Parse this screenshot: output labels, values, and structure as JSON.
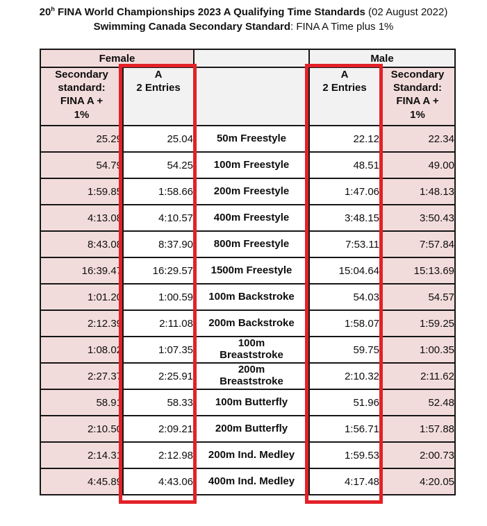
{
  "title": {
    "prefix": "20",
    "superscript": "h",
    "bold_main": " FINA World Championships 2023 A Qualifying Time Standards",
    "suffix": " (02 August 2022)"
  },
  "subtitle": {
    "bold": "Swimming Canada Secondary Standard",
    "regular": ": FINA A Time plus 1%"
  },
  "table": {
    "female_label": "Female",
    "male_label": "Male",
    "headers": {
      "female_secondary": "Secondary\nstandard:\nFINA A +\n1%",
      "female_a": "A\n2 Entries",
      "male_a": "A\n2 Entries",
      "male_secondary": "Secondary\nStandard:\nFINA A +\n1%"
    },
    "rows": [
      {
        "event": "50m Freestyle",
        "female_secondary": "25.29",
        "female_a": "25.04",
        "male_a": "22.12",
        "male_secondary": "22.34"
      },
      {
        "event": "100m Freestyle",
        "female_secondary": "54.79",
        "female_a": "54.25",
        "male_a": "48.51",
        "male_secondary": "49.00"
      },
      {
        "event": "200m Freestyle",
        "female_secondary": "1:59.85",
        "female_a": "1:58.66",
        "male_a": "1:47.06",
        "male_secondary": "1:48.13"
      },
      {
        "event": "400m Freestyle",
        "female_secondary": "4:13.08",
        "female_a": "4:10.57",
        "male_a": "3:48.15",
        "male_secondary": "3:50.43"
      },
      {
        "event": "800m Freestyle",
        "female_secondary": "8:43.08",
        "female_a": "8:37.90",
        "male_a": "7:53.11",
        "male_secondary": "7:57.84"
      },
      {
        "event": "1500m Freestyle",
        "female_secondary": "16:39.47",
        "female_a": "16:29.57",
        "male_a": "15:04.64",
        "male_secondary": "15:13.69"
      },
      {
        "event": "100m Backstroke",
        "female_secondary": "1:01.20",
        "female_a": "1:00.59",
        "male_a": "54.03",
        "male_secondary": "54.57"
      },
      {
        "event": "200m Backstroke",
        "female_secondary": "2:12.39",
        "female_a": "2:11.08",
        "male_a": "1:58.07",
        "male_secondary": "1:59.25"
      },
      {
        "event": "100m\nBreaststroke",
        "female_secondary": "1:08.02",
        "female_a": "1:07.35",
        "male_a": "59.75",
        "male_secondary": "1:00.35"
      },
      {
        "event": "200m\nBreaststroke",
        "female_secondary": "2:27.37",
        "female_a": "2:25.91",
        "male_a": "2:10.32",
        "male_secondary": "2:11.62"
      },
      {
        "event": "100m Butterfly",
        "female_secondary": "58.91",
        "female_a": "58.33",
        "male_a": "51.96",
        "male_secondary": "52.48"
      },
      {
        "event": "200m Butterfly",
        "female_secondary": "2:10.50",
        "female_a": "2:09.21",
        "male_a": "1:56.71",
        "male_secondary": "1:57.88"
      },
      {
        "event": "200m Ind. Medley",
        "female_secondary": "2:14.31",
        "female_a": "2:12.98",
        "male_a": "1:59.53",
        "male_secondary": "2:00.73"
      },
      {
        "event": "400m Ind. Medley",
        "female_secondary": "4:45.89",
        "female_a": "4:43.06",
        "male_a": "4:17.48",
        "male_secondary": "4:20.05"
      }
    ]
  },
  "colors": {
    "pink_cell": "#f2dcdb",
    "gray_cell": "#f2f2f2",
    "highlight_red": "#e22128",
    "border_black": "#161616"
  }
}
